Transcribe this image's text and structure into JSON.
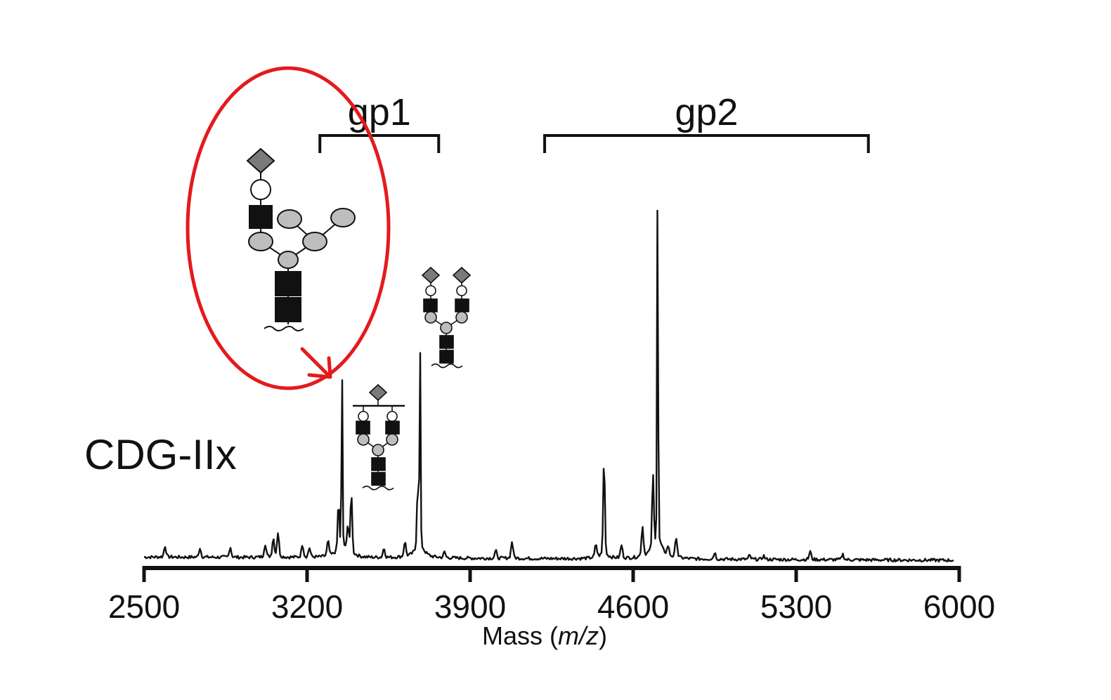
{
  "chart_data": {
    "type": "line",
    "title": "",
    "sample_label": "CDG-IIx",
    "xlabel": {
      "prefix": "Mass (",
      "italic": "m/z",
      "suffix": ")"
    },
    "ylabel": "",
    "xlim": [
      2500,
      6000
    ],
    "ylim": [
      0,
      100
    ],
    "x_ticks": [
      2500,
      3200,
      3900,
      4600,
      5300,
      6000
    ],
    "tick_labels": [
      "2500",
      "3200",
      "3900",
      "4600",
      "5300",
      "6000"
    ],
    "grid": false,
    "legend": "none",
    "series": [
      {
        "peaks": [
          {
            "x": 2590,
            "y": 3.0
          },
          {
            "x": 2740,
            "y": 2.5
          },
          {
            "x": 2870,
            "y": 2.8
          },
          {
            "x": 3020,
            "y": 3.5
          },
          {
            "x": 3055,
            "y": 5.0
          },
          {
            "x": 3075,
            "y": 6.5
          },
          {
            "x": 3180,
            "y": 3.5
          },
          {
            "x": 3210,
            "y": 2.5
          },
          {
            "x": 3290,
            "y": 4.0
          },
          {
            "x": 3335,
            "y": 13.0
          },
          {
            "x": 3350,
            "y": 50.0
          },
          {
            "x": 3375,
            "y": 7.0
          },
          {
            "x": 3390,
            "y": 17.0
          },
          {
            "x": 3530,
            "y": 2.5
          },
          {
            "x": 3620,
            "y": 4.0
          },
          {
            "x": 3675,
            "y": 17.0
          },
          {
            "x": 3685,
            "y": 57.0
          },
          {
            "x": 3790,
            "y": 1.5
          },
          {
            "x": 4010,
            "y": 2.0
          },
          {
            "x": 4080,
            "y": 4.5
          },
          {
            "x": 4440,
            "y": 3.5
          },
          {
            "x": 4475,
            "y": 27.0
          },
          {
            "x": 4550,
            "y": 3.5
          },
          {
            "x": 4640,
            "y": 8.0
          },
          {
            "x": 4685,
            "y": 20.0
          },
          {
            "x": 4705,
            "y": 100.0
          },
          {
            "x": 4750,
            "y": 2.5
          },
          {
            "x": 4785,
            "y": 5.5
          },
          {
            "x": 4950,
            "y": 1.8
          },
          {
            "x": 5100,
            "y": 1.0
          },
          {
            "x": 5160,
            "y": 1.0
          },
          {
            "x": 5360,
            "y": 2.2
          },
          {
            "x": 5500,
            "y": 1.5
          }
        ]
      }
    ],
    "annotations": {
      "brackets": [
        {
          "label": "gp1",
          "x_start": 3255,
          "x_end": 3765
        },
        {
          "label": "gp2",
          "x_start": 4220,
          "x_end": 5610
        }
      ],
      "highlight": {
        "shape": "ellipse",
        "color": "#e41a1c",
        "points_to_peak_x": 3350
      },
      "glycan_legend": {
        "neuac": "diamond",
        "gal": "white-circle",
        "glcnac": "black-square",
        "man": "grey-circle"
      }
    }
  },
  "colors": {
    "trace": "#111111",
    "axis": "#111111",
    "highlight": "#e41a1c",
    "mannose": "#bdbdbd",
    "sialic_acid": "#7a7a7a",
    "galactose": "#ffffff",
    "glcnac": "#111111"
  }
}
